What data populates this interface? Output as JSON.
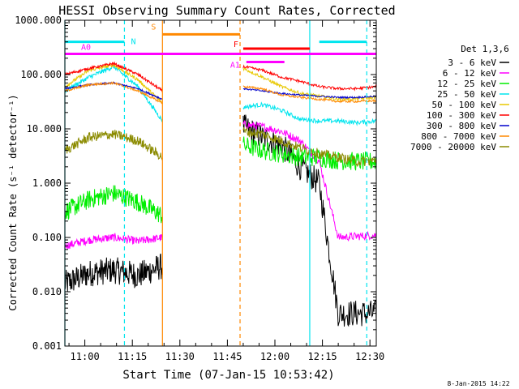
{
  "chart_data": {
    "type": "line",
    "title": "HESSI Observing Summary Count Rates, Corrected",
    "xlabel": "Start Time (07-Jan-15 10:53:42)",
    "ylabel": "Corrected Count Rate (s⁻¹ detector⁻¹)",
    "y_scale": "log",
    "ylim": [
      0.001,
      1000
    ],
    "xlim": [
      "10:53:42",
      "12:32:00"
    ],
    "y_ticks": [
      "0.001",
      "0.010",
      "0.100",
      "1.000",
      "10.000",
      "100.000",
      "1000.000"
    ],
    "x_ticks": [
      "11:00",
      "11:15",
      "11:30",
      "11:45",
      "12:00",
      "12:15",
      "12:30"
    ],
    "grid": false,
    "legend_title": "Det 1,3,6",
    "legend_position": "right",
    "series": [
      {
        "name": "3 - 6 keV",
        "color": "#000000",
        "level": [
          0.014,
          0.022,
          0.025,
          0.02,
          0.03
        ],
        "flare": [
          11.0,
          7.0,
          5.0,
          2.0,
          1.0,
          0.004,
          0.004,
          0.004
        ],
        "noise": 0.5
      },
      {
        "name": "6 - 12 keV",
        "color": "#ff00ff",
        "level": [
          0.07,
          0.09,
          0.1,
          0.085,
          0.1
        ],
        "flare": [
          12.0,
          11.0,
          9.0,
          6.0,
          2.5,
          0.1,
          0.105,
          0.11
        ],
        "noise": 0.15
      },
      {
        "name": "12 - 25 keV",
        "color": "#00ee00",
        "level": [
          0.3,
          0.5,
          0.65,
          0.45,
          0.25
        ],
        "flare": [
          5.0,
          4.0,
          3.5,
          3.0,
          3.0,
          2.6,
          2.5,
          2.5
        ],
        "noise": 0.35
      },
      {
        "name": "25 - 50 keV",
        "color": "#00e5ee",
        "level": [
          50,
          90,
          140,
          60,
          14
        ],
        "flare": [
          25,
          28,
          22,
          15,
          14,
          14,
          13,
          14
        ],
        "noise": 0.08
      },
      {
        "name": "50 - 100 keV",
        "color": "#e8c800",
        "level": [
          60,
          120,
          150,
          80,
          30
        ],
        "flare": [
          130,
          90,
          60,
          45,
          40,
          35,
          36,
          38
        ],
        "noise": 0.06
      },
      {
        "name": "100 - 300 keV",
        "color": "#ff0000",
        "level": [
          100,
          130,
          160,
          100,
          50
        ],
        "flare": [
          140,
          120,
          90,
          75,
          60,
          55,
          55,
          60
        ],
        "noise": 0.05
      },
      {
        "name": "300 - 800 keV",
        "color": "#0000cc",
        "level": [
          55,
          65,
          70,
          55,
          35
        ],
        "flare": [
          55,
          50,
          45,
          42,
          40,
          38,
          38,
          40
        ],
        "noise": 0.03
      },
      {
        "name": "800 - 7000 keV",
        "color": "#ff8800",
        "level": [
          50,
          65,
          70,
          50,
          30
        ],
        "flare": [
          60,
          55,
          42,
          38,
          35,
          32,
          32,
          33
        ],
        "noise": 0.04
      },
      {
        "name": "7000 - 20000 keV",
        "color": "#8b8b00",
        "level": [
          4,
          7,
          8,
          6,
          3
        ],
        "flare": [
          9,
          8,
          6,
          4.5,
          3.5,
          3,
          2.5,
          2.6
        ],
        "noise": 0.18
      }
    ],
    "attenuator_bars": [
      {
        "label": "N",
        "color": "#00e5ee",
        "value": 400,
        "start": "10:53:42",
        "end": "11:12:30"
      },
      {
        "label": "N",
        "color": "#00e5ee",
        "value": 400,
        "start": "12:14:00",
        "end": "12:29:00"
      },
      {
        "label": "S",
        "color": "#ff8800",
        "value": 550,
        "start": "11:24:30",
        "end": "11:49:00"
      },
      {
        "label": "F",
        "color": "#ff0000",
        "value": 300,
        "start": "11:50:00",
        "end": "12:11:00"
      },
      {
        "label": "A0",
        "color": "#ff00ff",
        "value": 240,
        "start": "10:53:42",
        "end": "12:32:00"
      },
      {
        "label": "A1",
        "color": "#ff00ff",
        "value": 170,
        "start": "11:51:00",
        "end": "12:03:00"
      }
    ],
    "vertical_markers": [
      {
        "time": "10:53:42",
        "color": "#00e5ee",
        "style": "solid"
      },
      {
        "time": "11:12:30",
        "color": "#00e5ee",
        "style": "dashed"
      },
      {
        "time": "11:24:30",
        "color": "#ff8800",
        "style": "solid"
      },
      {
        "time": "11:49:00",
        "color": "#ff8800",
        "style": "dashed"
      },
      {
        "time": "12:11:00",
        "color": "#00e5ee",
        "style": "solid"
      },
      {
        "time": "12:29:00",
        "color": "#00e5ee",
        "style": "dashed"
      }
    ],
    "data_gap": [
      "11:24:30",
      "11:50:00"
    ],
    "footer_date": "8-Jan-2015 14:22"
  }
}
